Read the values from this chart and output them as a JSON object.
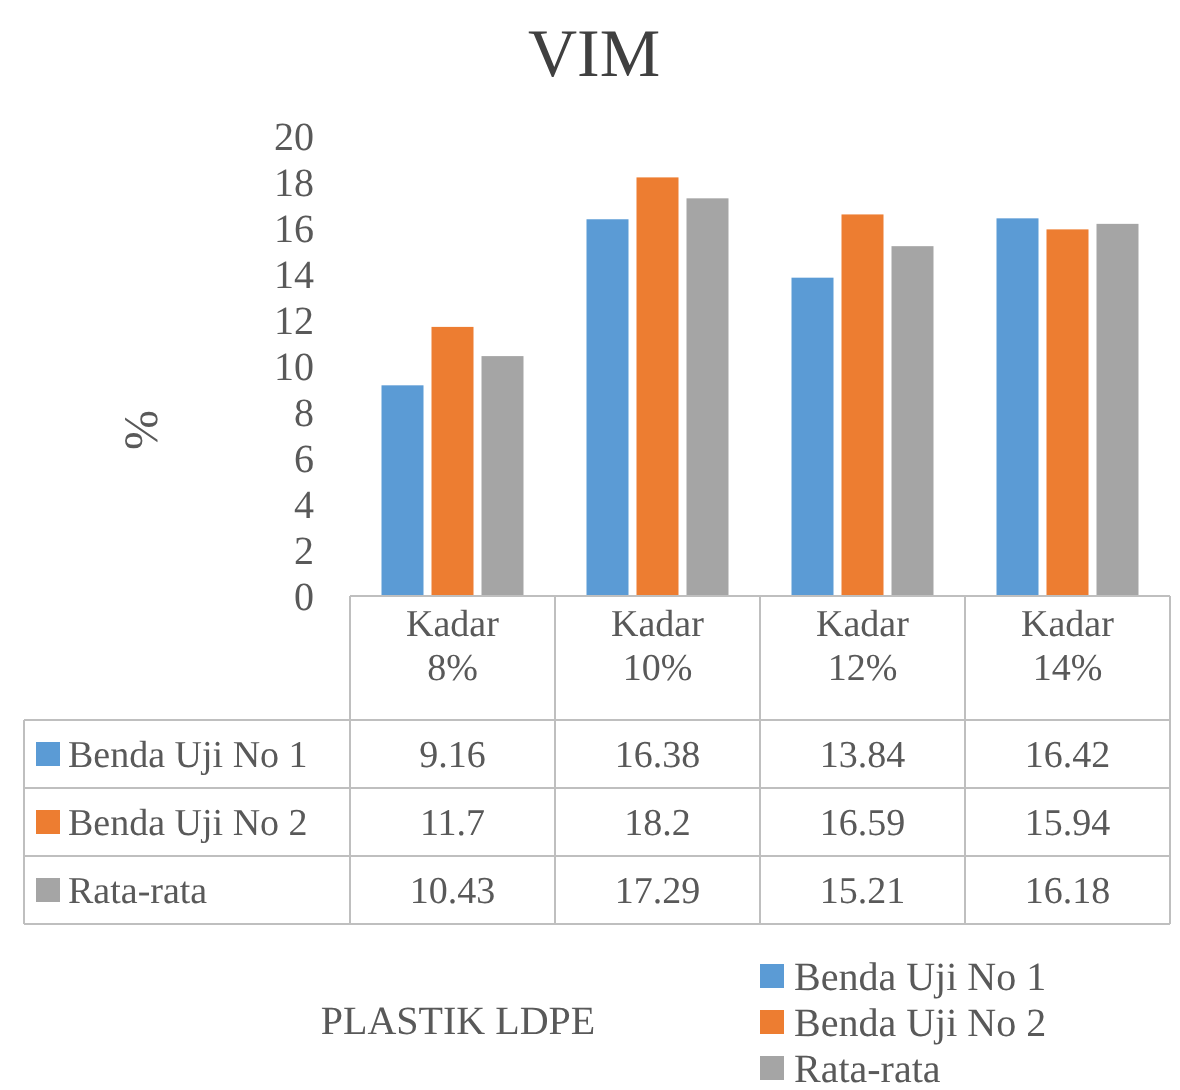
{
  "chart_data": {
    "type": "bar",
    "title": "VIM",
    "ylabel": "%",
    "annotations": [
      "PLASTIK LDPE"
    ],
    "categories": [
      "Kadar 8%",
      "Kadar 10%",
      "Kadar 12%",
      "Kadar 14%"
    ],
    "series": [
      {
        "name": "Benda Uji No 1",
        "color": "#5b9bd5",
        "values": [
          9.16,
          16.38,
          13.84,
          16.42
        ]
      },
      {
        "name": "Benda Uji No 2",
        "color": "#ed7d31",
        "values": [
          11.7,
          18.2,
          16.59,
          15.94
        ]
      },
      {
        "name": "Rata-rata",
        "color": "#a5a5a5",
        "values": [
          10.43,
          17.29,
          15.21,
          16.18
        ]
      }
    ],
    "ylim": [
      0,
      20
    ],
    "yticks": [
      0,
      2,
      4,
      6,
      8,
      10,
      12,
      14,
      16,
      18,
      20
    ],
    "data_labels": true,
    "legend": "bottom"
  }
}
